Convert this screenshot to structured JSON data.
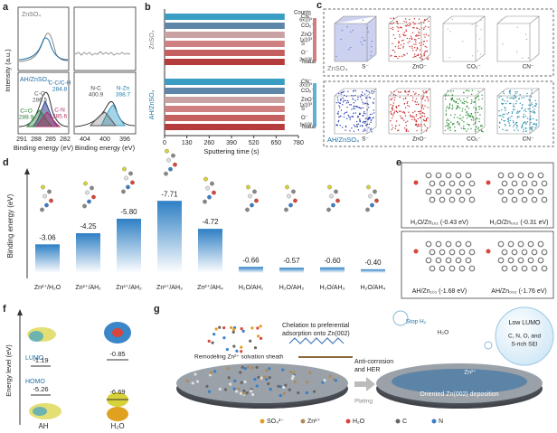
{
  "chart_data": [
    {
      "type": "barh",
      "groups": [
        "ZnSO₄",
        "AH/ZnSO₄"
      ],
      "categories": [
        "CN⁻",
        "CO₂⁻",
        "ZnO⁻",
        "S⁻",
        "O⁻",
        "Toatal"
      ],
      "series": [
        {
          "name": "ZnSO₄",
          "colors": [
            "#3a9ec4",
            "#5d86a8",
            "#c9a3a3",
            "#cf8080",
            "#c46060",
            "#b43c3c"
          ],
          "values": [
            700,
            700,
            700,
            700,
            700,
            700
          ]
        },
        {
          "name": "AH/ZnSO₄",
          "colors": [
            "#3a9ec4",
            "#5d86a8",
            "#c9a3a3",
            "#cf8080",
            "#c46060",
            "#b43c3c"
          ],
          "values": [
            700,
            700,
            700,
            700,
            700,
            700
          ]
        }
      ],
      "xlabel": "Sputtering time (s)",
      "xlim": [
        0,
        780
      ],
      "xticks": [
        0,
        130,
        260,
        390,
        520,
        650,
        780
      ],
      "colorbar_title": "Counts",
      "colorbar_labels": [
        [
          "6x10³",
          "1x10³",
          "2x10²"
        ],
        [
          "3x10³",
          "1x10³",
          "1x10²"
        ]
      ]
    },
    {
      "type": "bar",
      "ylabel": "Binding energy (eV)",
      "categories": [
        "Zn²⁺/H₂O",
        "Zn²⁺/AH₁",
        "Zn²⁺/AH₂",
        "Zn²⁺/AH₃",
        "Zn²⁺/AH₄",
        "H₂O/AH₁",
        "H₂O/AH₂",
        "H₂O/AH₃",
        "H₂O/AH₄"
      ],
      "values": [
        -3.06,
        -4.25,
        -5.8,
        -7.71,
        -4.72,
        -0.66,
        -0.57,
        -0.6,
        -0.4
      ],
      "value_labels": [
        "-3.06",
        "-4.25",
        "-5.80",
        "-7.71",
        "-4.72",
        "-0.66",
        "-0.57",
        "-0.60",
        "-0.40"
      ],
      "ylim": [
        0,
        -8.5
      ],
      "color": "#2e7fc4"
    }
  ],
  "letters": [
    "a",
    "b",
    "c",
    "d",
    "e",
    "f",
    "g"
  ],
  "panel_a": {
    "top_label": "ZnSO₄",
    "ylabel": "Intensity (a.u.)",
    "bottom_label": "AH/ZnSO₄",
    "c_peaks": [
      [
        "C-C/C-H",
        "284.8"
      ],
      [
        "C-O",
        "286.5"
      ],
      [
        "C=O",
        "288.9"
      ],
      [
        "C-N",
        "285.6"
      ]
    ],
    "n_peaks": [
      [
        "N-C",
        "400.9"
      ],
      [
        "N-Zn",
        "398.7"
      ]
    ],
    "xticks_left": [
      "291",
      "288",
      "285",
      "282"
    ],
    "xticks_right": [
      "404",
      "400",
      "396"
    ],
    "xlabel": "Binding energy (eV)"
  },
  "panel_c": {
    "top_label": "ZnSO₄",
    "bottom_label": "AH/ZnSO₄",
    "ions": [
      "S⁻",
      "ZnO⁻",
      "CO₂⁻",
      "CN⁻"
    ]
  },
  "panel_e": {
    "labels": [
      "H₂O/Zn₁₀₁ (-0.43 eV)",
      "H₂O/Zn₀₀₂ (-0.31 eV)",
      "AH/Zn₁₀₁ (-1.68 eV)",
      "AH/Zn₀₀₂ (-1.76 eV)"
    ]
  },
  "panel_f": {
    "ylabel": "Energy level (eV)",
    "lumo": "LUMO",
    "homo": "HOMO",
    "ah": {
      "name": "AH",
      "lumo": "-1.19",
      "homo": "-5.26"
    },
    "h2o": {
      "name": "H₂O",
      "lumo": "-0.85",
      "homo": "-6.69"
    }
  },
  "panel_g": {
    "remodel": "Remodeling Zn²⁺ solvation sheath",
    "chelation": [
      "Chelation to preferential",
      "adsorption onto Zn(002)"
    ],
    "anti": [
      "Anti-corrosion",
      "and HER"
    ],
    "stop": "Stop H₂",
    "h2o": "H₂O",
    "zn": "Zn²⁺",
    "lumo": "Low LUMO",
    "sei": [
      "C, N, O, and",
      "S-rich SEI"
    ],
    "plating": "Plating",
    "oriented": "Oriented Zn(002) deposition",
    "legend": [
      "SO₄²⁻",
      "Zn²⁺",
      "H₂O",
      "C",
      "N"
    ]
  }
}
